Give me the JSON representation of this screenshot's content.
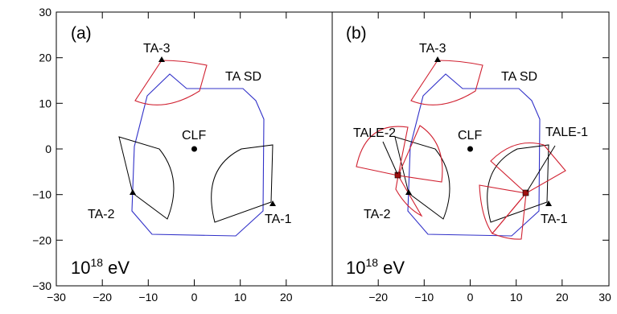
{
  "figure": {
    "xticks": [
      "−30",
      "−20",
      "−10",
      "0",
      "10",
      "20",
      "30"
    ],
    "yticks": [
      "30",
      "20",
      "10",
      "0",
      "−10",
      "−20",
      "−30"
    ],
    "energy_label": {
      "base": "10",
      "exponent": "18",
      "unit": " eV"
    },
    "colors": {
      "sd_boundary": "#3030c8",
      "fd_fov": "#000000",
      "tale_fov": "#d02030",
      "tale_marker": "#a01010"
    }
  },
  "panel_a": {
    "label": "(a)",
    "stations": {
      "ta1": {
        "label": "TA-1"
      },
      "ta2": {
        "label": "TA-2"
      },
      "ta3": {
        "label": "TA-3"
      }
    },
    "clf": "CLF",
    "sd": "TA SD"
  },
  "panel_b": {
    "label": "(b)",
    "stations": {
      "ta1": {
        "label": "TA-1"
      },
      "ta2": {
        "label": "TA-2"
      },
      "ta3": {
        "label": "TA-3"
      }
    },
    "clf": "CLF",
    "sd": "TA SD",
    "tale1": "TALE-1",
    "tale2": "TALE-2"
  }
}
